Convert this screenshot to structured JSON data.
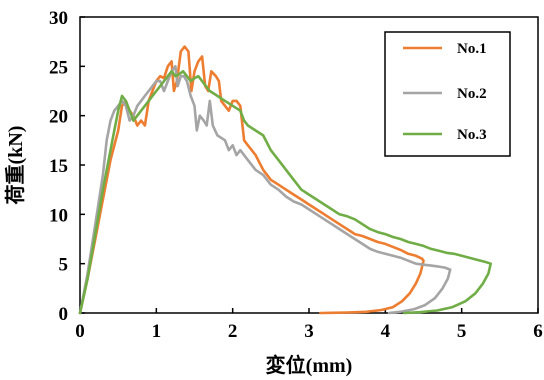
{
  "chart_data": {
    "type": "line",
    "xlabel": "変位(mm)",
    "ylabel": "荷重(kN)",
    "xlim": [
      0,
      6
    ],
    "ylim": [
      0,
      30
    ],
    "x_ticks": [
      "0",
      "1",
      "2",
      "3",
      "4",
      "5",
      "6"
    ],
    "y_ticks": [
      "0",
      "5",
      "10",
      "15",
      "20",
      "25",
      "30"
    ],
    "grid": false,
    "legend": "top-right",
    "series": [
      {
        "name": "No.1",
        "color": "#ed7d31",
        "points": [
          [
            0.0,
            0.0
          ],
          [
            0.1,
            3.5
          ],
          [
            0.2,
            7.5
          ],
          [
            0.3,
            11.5
          ],
          [
            0.4,
            15.5
          ],
          [
            0.5,
            18.5
          ],
          [
            0.55,
            21.0
          ],
          [
            0.6,
            21.5
          ],
          [
            0.65,
            20.5
          ],
          [
            0.7,
            20.0
          ],
          [
            0.75,
            19.0
          ],
          [
            0.8,
            19.5
          ],
          [
            0.85,
            19.0
          ],
          [
            0.9,
            21.5
          ],
          [
            1.0,
            23.5
          ],
          [
            1.05,
            24.0
          ],
          [
            1.1,
            23.8
          ],
          [
            1.15,
            25.0
          ],
          [
            1.2,
            25.5
          ],
          [
            1.23,
            22.5
          ],
          [
            1.27,
            23.5
          ],
          [
            1.32,
            26.5
          ],
          [
            1.37,
            27.0
          ],
          [
            1.42,
            26.5
          ],
          [
            1.46,
            22.5
          ],
          [
            1.5,
            24.5
          ],
          [
            1.55,
            25.5
          ],
          [
            1.6,
            26.0
          ],
          [
            1.64,
            23.0
          ],
          [
            1.68,
            22.5
          ],
          [
            1.72,
            24.5
          ],
          [
            1.78,
            24.0
          ],
          [
            1.82,
            23.5
          ],
          [
            1.85,
            21.5
          ],
          [
            1.9,
            21.0
          ],
          [
            1.95,
            20.5
          ],
          [
            2.0,
            21.5
          ],
          [
            2.05,
            21.5
          ],
          [
            2.1,
            21.0
          ],
          [
            2.15,
            17.5
          ],
          [
            2.2,
            17.0
          ],
          [
            2.3,
            16.0
          ],
          [
            2.4,
            14.5
          ],
          [
            2.5,
            13.5
          ],
          [
            2.6,
            13.0
          ],
          [
            2.7,
            12.5
          ],
          [
            2.8,
            12.0
          ],
          [
            2.9,
            11.5
          ],
          [
            3.0,
            11.0
          ],
          [
            3.1,
            10.5
          ],
          [
            3.2,
            10.0
          ],
          [
            3.3,
            9.5
          ],
          [
            3.4,
            9.0
          ],
          [
            3.5,
            8.5
          ],
          [
            3.6,
            8.0
          ],
          [
            3.7,
            7.8
          ],
          [
            3.8,
            7.5
          ],
          [
            3.9,
            7.2
          ],
          [
            4.0,
            7.0
          ],
          [
            4.1,
            6.7
          ],
          [
            4.2,
            6.4
          ],
          [
            4.3,
            6.0
          ],
          [
            4.4,
            5.8
          ],
          [
            4.48,
            5.5
          ],
          [
            4.5,
            5.3
          ],
          [
            4.46,
            4.0
          ],
          [
            4.4,
            3.0
          ],
          [
            4.32,
            2.0
          ],
          [
            4.22,
            1.2
          ],
          [
            4.1,
            0.6
          ],
          [
            3.95,
            0.3
          ],
          [
            3.75,
            0.12
          ],
          [
            3.5,
            0.05
          ],
          [
            3.3,
            0.02
          ],
          [
            3.15,
            0.0
          ]
        ]
      },
      {
        "name": "No.2",
        "color": "#a5a5a5",
        "points": [
          [
            0.0,
            0.0
          ],
          [
            0.1,
            4.0
          ],
          [
            0.2,
            9.0
          ],
          [
            0.3,
            14.0
          ],
          [
            0.35,
            17.5
          ],
          [
            0.4,
            19.5
          ],
          [
            0.45,
            20.5
          ],
          [
            0.5,
            21.0
          ],
          [
            0.55,
            21.5
          ],
          [
            0.6,
            21.0
          ],
          [
            0.65,
            19.5
          ],
          [
            0.7,
            20.0
          ],
          [
            0.75,
            21.0
          ],
          [
            0.8,
            21.5
          ],
          [
            0.85,
            22.0
          ],
          [
            0.9,
            22.5
          ],
          [
            0.95,
            23.0
          ],
          [
            1.0,
            23.5
          ],
          [
            1.05,
            23.5
          ],
          [
            1.1,
            22.5
          ],
          [
            1.15,
            23.5
          ],
          [
            1.2,
            24.5
          ],
          [
            1.25,
            25.0
          ],
          [
            1.28,
            23.0
          ],
          [
            1.32,
            24.0
          ],
          [
            1.36,
            24.0
          ],
          [
            1.4,
            23.5
          ],
          [
            1.45,
            22.0
          ],
          [
            1.5,
            21.0
          ],
          [
            1.53,
            18.5
          ],
          [
            1.57,
            20.0
          ],
          [
            1.62,
            19.5
          ],
          [
            1.66,
            19.0
          ],
          [
            1.7,
            21.5
          ],
          [
            1.74,
            19.0
          ],
          [
            1.8,
            18.0
          ],
          [
            1.9,
            17.5
          ],
          [
            1.95,
            16.5
          ],
          [
            2.0,
            17.0
          ],
          [
            2.05,
            16.0
          ],
          [
            2.1,
            16.5
          ],
          [
            2.2,
            15.5
          ],
          [
            2.3,
            14.5
          ],
          [
            2.4,
            14.0
          ],
          [
            2.5,
            13.0
          ],
          [
            2.6,
            12.5
          ],
          [
            2.7,
            11.8
          ],
          [
            2.8,
            11.3
          ],
          [
            2.9,
            11.0
          ],
          [
            3.0,
            10.5
          ],
          [
            3.1,
            10.0
          ],
          [
            3.2,
            9.5
          ],
          [
            3.3,
            9.0
          ],
          [
            3.4,
            8.5
          ],
          [
            3.5,
            8.0
          ],
          [
            3.6,
            7.5
          ],
          [
            3.7,
            7.0
          ],
          [
            3.8,
            6.5
          ],
          [
            3.9,
            6.2
          ],
          [
            4.0,
            6.0
          ],
          [
            4.1,
            5.8
          ],
          [
            4.2,
            5.6
          ],
          [
            4.3,
            5.3
          ],
          [
            4.4,
            5.0
          ],
          [
            4.5,
            4.9
          ],
          [
            4.6,
            4.8
          ],
          [
            4.7,
            4.7
          ],
          [
            4.78,
            4.6
          ],
          [
            4.85,
            4.4
          ],
          [
            4.82,
            3.5
          ],
          [
            4.75,
            2.5
          ],
          [
            4.65,
            1.5
          ],
          [
            4.52,
            0.8
          ],
          [
            4.38,
            0.4
          ],
          [
            4.22,
            0.15
          ],
          [
            4.05,
            0.0
          ]
        ]
      },
      {
        "name": "No.3",
        "color": "#70ad47",
        "points": [
          [
            0.0,
            0.0
          ],
          [
            0.1,
            3.5
          ],
          [
            0.2,
            8.0
          ],
          [
            0.3,
            12.5
          ],
          [
            0.4,
            16.5
          ],
          [
            0.45,
            18.5
          ],
          [
            0.5,
            20.5
          ],
          [
            0.55,
            22.0
          ],
          [
            0.6,
            21.5
          ],
          [
            0.65,
            20.5
          ],
          [
            0.7,
            19.5
          ],
          [
            0.75,
            20.0
          ],
          [
            0.8,
            20.5
          ],
          [
            0.85,
            21.0
          ],
          [
            0.9,
            21.5
          ],
          [
            0.95,
            22.0
          ],
          [
            1.0,
            22.5
          ],
          [
            1.05,
            23.0
          ],
          [
            1.1,
            23.5
          ],
          [
            1.15,
            24.0
          ],
          [
            1.2,
            24.5
          ],
          [
            1.25,
            24.0
          ],
          [
            1.3,
            24.2
          ],
          [
            1.35,
            24.5
          ],
          [
            1.4,
            24.0
          ],
          [
            1.45,
            23.5
          ],
          [
            1.5,
            23.8
          ],
          [
            1.55,
            24.0
          ],
          [
            1.6,
            23.5
          ],
          [
            1.65,
            23.0
          ],
          [
            1.7,
            22.5
          ],
          [
            1.8,
            22.0
          ],
          [
            1.9,
            21.5
          ],
          [
            2.0,
            21.0
          ],
          [
            2.1,
            20.5
          ],
          [
            2.15,
            19.5
          ],
          [
            2.2,
            19.0
          ],
          [
            2.3,
            18.5
          ],
          [
            2.4,
            18.0
          ],
          [
            2.5,
            16.5
          ],
          [
            2.6,
            15.5
          ],
          [
            2.7,
            14.5
          ],
          [
            2.8,
            13.5
          ],
          [
            2.9,
            12.5
          ],
          [
            3.0,
            12.0
          ],
          [
            3.1,
            11.5
          ],
          [
            3.2,
            11.0
          ],
          [
            3.3,
            10.5
          ],
          [
            3.4,
            10.0
          ],
          [
            3.5,
            9.8
          ],
          [
            3.6,
            9.5
          ],
          [
            3.7,
            9.0
          ],
          [
            3.8,
            8.5
          ],
          [
            3.9,
            8.2
          ],
          [
            4.0,
            8.0
          ],
          [
            4.1,
            7.7
          ],
          [
            4.2,
            7.5
          ],
          [
            4.3,
            7.2
          ],
          [
            4.4,
            7.0
          ],
          [
            4.5,
            6.8
          ],
          [
            4.6,
            6.5
          ],
          [
            4.7,
            6.3
          ],
          [
            4.8,
            6.1
          ],
          [
            4.9,
            6.0
          ],
          [
            5.0,
            5.8
          ],
          [
            5.1,
            5.6
          ],
          [
            5.2,
            5.4
          ],
          [
            5.3,
            5.2
          ],
          [
            5.38,
            5.0
          ],
          [
            5.35,
            4.0
          ],
          [
            5.28,
            3.0
          ],
          [
            5.18,
            2.0
          ],
          [
            5.05,
            1.2
          ],
          [
            4.88,
            0.6
          ],
          [
            4.68,
            0.25
          ],
          [
            4.45,
            0.08
          ],
          [
            4.25,
            0.0
          ]
        ]
      }
    ]
  }
}
